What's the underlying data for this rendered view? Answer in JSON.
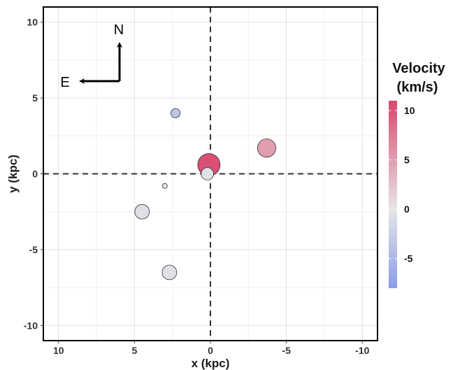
{
  "chart_data": {
    "type": "scatter",
    "title": "",
    "xlabel": "x (kpc)",
    "ylabel": "y (kpc)",
    "xlim": [
      11,
      -11
    ],
    "ylim": [
      -11,
      11
    ],
    "x_reversed": true,
    "x_ticks": [
      10,
      5,
      0,
      -5,
      -10
    ],
    "x_tick_labels": [
      "10",
      "5",
      "0",
      "-5",
      "-10"
    ],
    "y_ticks": [
      10,
      5,
      0,
      -5,
      -10
    ],
    "y_tick_labels": [
      "10",
      "5",
      "0",
      "-5",
      "-10"
    ],
    "grid": true,
    "reference_lines": {
      "x": 0,
      "y": 0,
      "style": "dashed"
    },
    "points": [
      {
        "x": 2.3,
        "y": 4.0,
        "velocity": -3.5,
        "size": 0.28
      },
      {
        "x": 0.1,
        "y": 0.6,
        "velocity": 10.5,
        "size": 1.0
      },
      {
        "x": -3.7,
        "y": 1.7,
        "velocity": 5.0,
        "size": 0.78
      },
      {
        "x": 0.2,
        "y": 0.0,
        "velocity": -0.5,
        "size": 0.45
      },
      {
        "x": 3.0,
        "y": -0.8,
        "velocity": 0.0,
        "size": 0.04
      },
      {
        "x": 4.5,
        "y": -2.5,
        "velocity": -0.7,
        "size": 0.57
      },
      {
        "x": 2.7,
        "y": -6.5,
        "velocity": -0.5,
        "size": 0.57
      }
    ],
    "colorbar": {
      "title_lines": [
        "Velocity",
        "(km/s)"
      ],
      "min": -8,
      "max": 11,
      "ticks": [
        10,
        5,
        0,
        -5
      ],
      "tick_labels": [
        "10",
        "5",
        "0",
        "-5"
      ],
      "colors": {
        "low": "#8b9ce8",
        "mid": "#e6e6e6",
        "high": "#d9486f"
      }
    },
    "compass": {
      "north_label": "N",
      "east_label": "E"
    }
  }
}
